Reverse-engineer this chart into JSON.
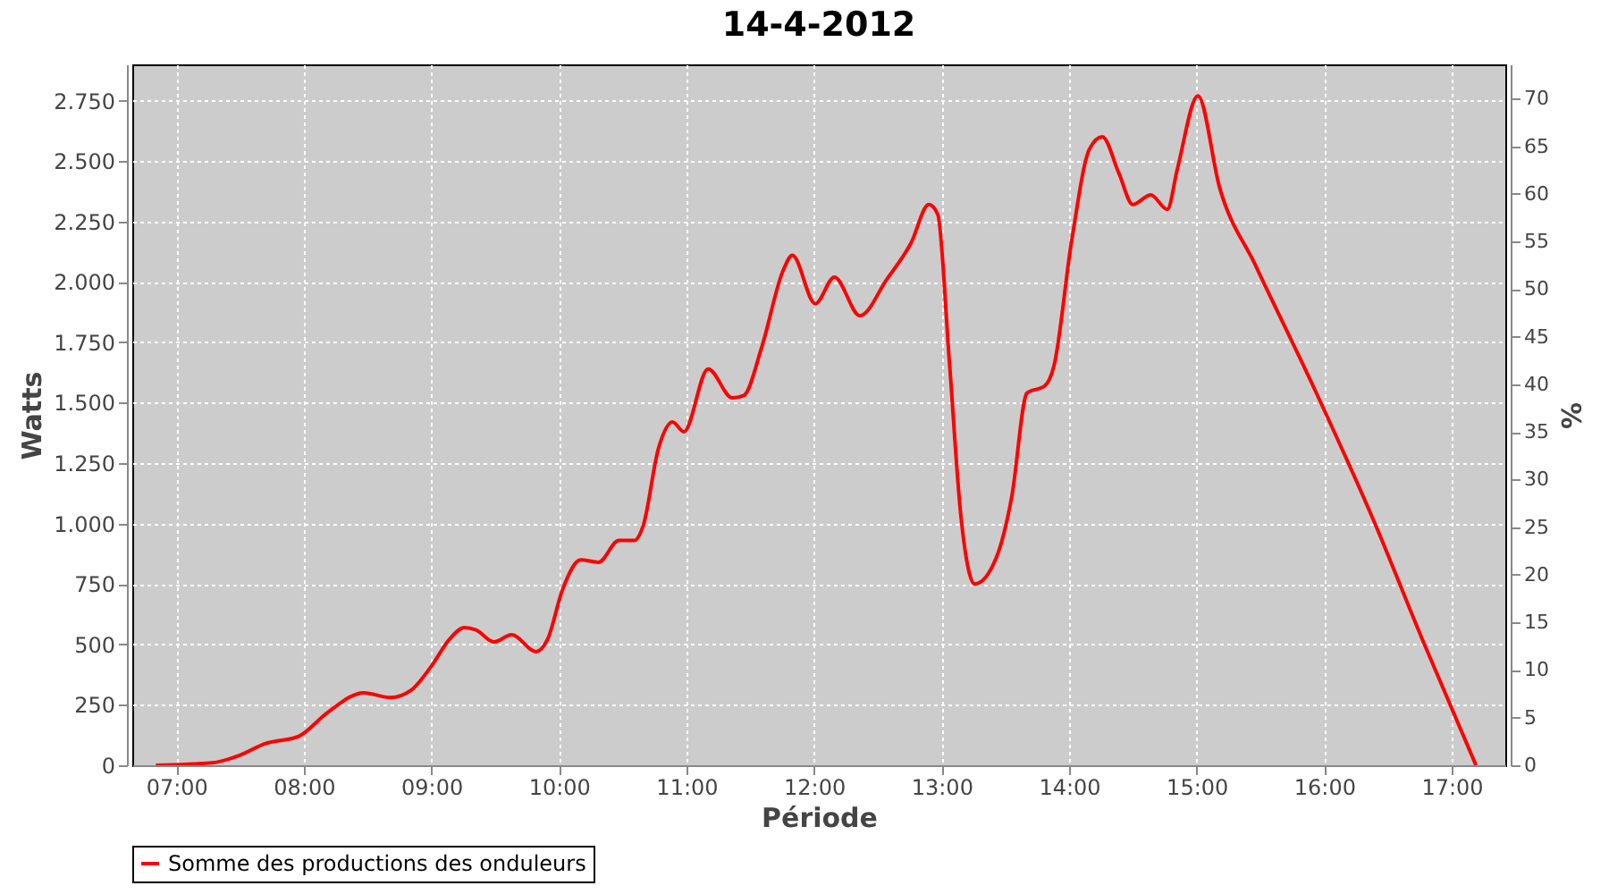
{
  "chart_data": {
    "type": "line",
    "title": "14-4-2012",
    "xlabel": "Période",
    "ylabel": "Watts",
    "y2label": "%",
    "x": [
      6.84,
      7.28,
      7.49,
      7.7,
      7.96,
      8.19,
      8.47,
      8.68,
      8.84,
      9.0,
      9.14,
      9.26,
      9.35,
      9.49,
      9.63,
      9.82,
      9.91,
      10.03,
      10.17,
      10.31,
      10.47,
      10.59,
      10.66,
      10.78,
      10.89,
      10.98,
      11.17,
      11.36,
      11.45,
      11.59,
      11.76,
      11.83,
      12.01,
      12.16,
      12.36,
      12.57,
      12.76,
      12.9,
      12.97,
      13.06,
      13.15,
      13.26,
      13.43,
      13.55,
      13.67,
      13.81,
      13.88,
      14.02,
      14.16,
      14.26,
      14.39,
      14.5,
      14.64,
      14.77,
      14.85,
      15.01,
      15.18,
      15.46,
      15.93,
      16.39,
      16.77,
      17.19
    ],
    "series": [
      {
        "name": "Somme des productions des onduleurs",
        "color": "#ff0000",
        "values": [
          0,
          10,
          40,
          90,
          120,
          220,
          300,
          280,
          310,
          410,
          520,
          570,
          560,
          510,
          540,
          470,
          520,
          730,
          850,
          840,
          930,
          930,
          990,
          1310,
          1420,
          1380,
          1640,
          1520,
          1530,
          1730,
          2050,
          2110,
          1910,
          2020,
          1860,
          2010,
          2160,
          2320,
          2280,
          1680,
          1040,
          750,
          860,
          1110,
          1540,
          1570,
          1650,
          2170,
          2550,
          2600,
          2450,
          2320,
          2360,
          2300,
          2470,
          2770,
          2390,
          2070,
          1550,
          1010,
          520,
          0
        ]
      }
    ],
    "xlim": [
      6.655,
      17.42
    ],
    "xticks": [
      {
        "value": 7,
        "label": "07:00"
      },
      {
        "value": 8,
        "label": "08:00"
      },
      {
        "value": 9,
        "label": "09:00"
      },
      {
        "value": 10,
        "label": "10:00"
      },
      {
        "value": 11,
        "label": "11:00"
      },
      {
        "value": 12,
        "label": "12:00"
      },
      {
        "value": 13,
        "label": "13:00"
      },
      {
        "value": 14,
        "label": "14:00"
      },
      {
        "value": 15,
        "label": "15:00"
      },
      {
        "value": 16,
        "label": "16:00"
      },
      {
        "value": 17,
        "label": "17:00"
      }
    ],
    "ylim": [
      0,
      2900
    ],
    "yticks": [
      {
        "value": 0,
        "label": "0"
      },
      {
        "value": 250,
        "label": "250"
      },
      {
        "value": 500,
        "label": "500"
      },
      {
        "value": 750,
        "label": "750"
      },
      {
        "value": 1000,
        "label": "1.000"
      },
      {
        "value": 1250,
        "label": "1.250"
      },
      {
        "value": 1500,
        "label": "1.500"
      },
      {
        "value": 1750,
        "label": "1.750"
      },
      {
        "value": 2000,
        "label": "2.000"
      },
      {
        "value": 2250,
        "label": "2.250"
      },
      {
        "value": 2500,
        "label": "2.500"
      },
      {
        "value": 2750,
        "label": "2.750"
      }
    ],
    "y2lim": [
      0,
      73.6
    ],
    "y2ticks": [
      0,
      5,
      10,
      15,
      20,
      25,
      30,
      35,
      40,
      45,
      50,
      55,
      60,
      65,
      70
    ],
    "grid": true,
    "legend": "bottom",
    "line_style": "solid",
    "marker": "none"
  }
}
